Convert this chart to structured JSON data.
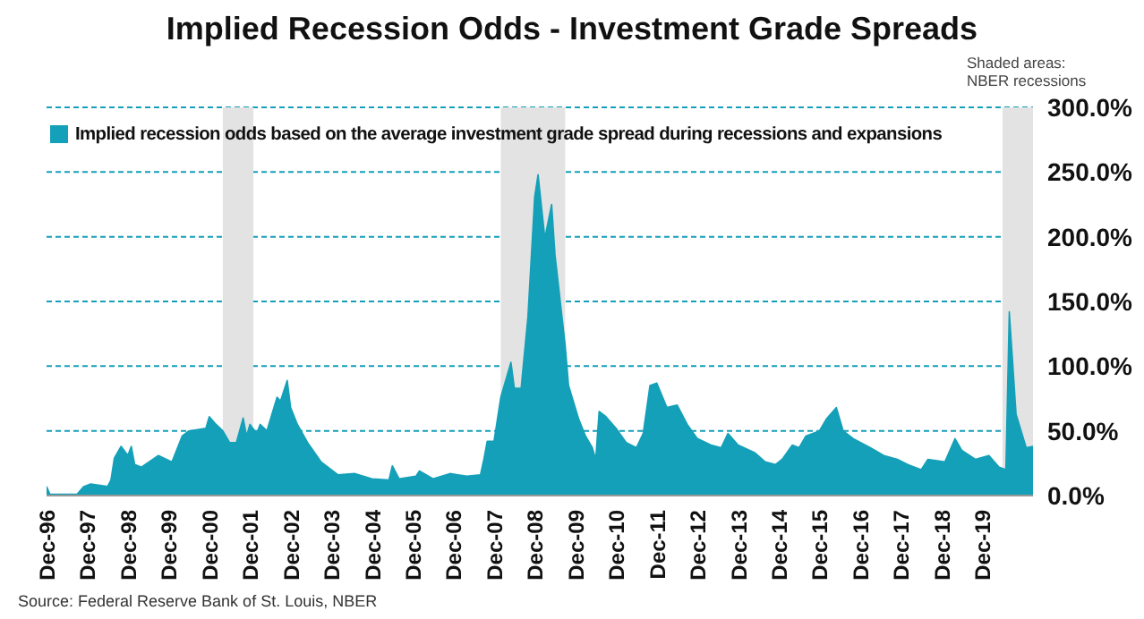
{
  "chart_data": {
    "type": "area",
    "title": "Implied Recession Odds - Investment Grade Spreads",
    "annotations": [
      "Shaded areas:\nNBER recessions",
      "Source: Federal Reserve Bank of St. Louis, NBER"
    ],
    "x": [
      "1996-12",
      "1997-01",
      "1997-09",
      "1997-11",
      "1998-01",
      "1998-06",
      "1998-07",
      "1998-08",
      "1998-10",
      "1998-12",
      "1999-01",
      "1999-02",
      "1999-04",
      "1999-09",
      "2000-01",
      "2000-04",
      "2000-06",
      "2000-11",
      "2000-12",
      "2001-02",
      "2001-04",
      "2001-06",
      "2001-08",
      "2001-10",
      "2001-11",
      "2001-12",
      "2002-02",
      "2002-03",
      "2002-05",
      "2002-08",
      "2002-09",
      "2002-11",
      "2002-12",
      "2003-02",
      "2003-05",
      "2003-09",
      "2004-02",
      "2004-07",
      "2004-12",
      "2005-05",
      "2005-06",
      "2005-08",
      "2006-01",
      "2006-02",
      "2006-06",
      "2006-11",
      "2007-04",
      "2007-08",
      "2007-09",
      "2007-10",
      "2007-12",
      "2008-02",
      "2008-05",
      "2008-06",
      "2008-08",
      "2008-10",
      "2008-12",
      "2009-01",
      "2009-03",
      "2009-05",
      "2009-06",
      "2009-09",
      "2009-10",
      "2010-01",
      "2010-03",
      "2010-05",
      "2010-06",
      "2010-07",
      "2010-09",
      "2010-12",
      "2011-03",
      "2011-06",
      "2011-08",
      "2011-10",
      "2011-12",
      "2012-03",
      "2012-06",
      "2012-09",
      "2012-12",
      "2013-04",
      "2013-07",
      "2013-09",
      "2013-12",
      "2014-05",
      "2014-08",
      "2014-11",
      "2015-01",
      "2015-04",
      "2015-06",
      "2015-08",
      "2015-12",
      "2016-02",
      "2016-05",
      "2016-07",
      "2016-10",
      "2017-03",
      "2017-07",
      "2017-11",
      "2018-02",
      "2018-06",
      "2018-08",
      "2019-01",
      "2019-04",
      "2019-06",
      "2019-10",
      "2020-02",
      "2020-05",
      "2020-07",
      "2020-08",
      "2020-09",
      "2020-10",
      "2021-01",
      "2021-03"
    ],
    "series": [
      {
        "name": "Implied recession odds based on the average investment grade spread during recessions and expansions",
        "color": "#14a0b8",
        "values": [
          7,
          1,
          1,
          7,
          9,
          7,
          12,
          29,
          38,
          31,
          38,
          24,
          22,
          31,
          26,
          46,
          50,
          52,
          61,
          55,
          50,
          41,
          41,
          60,
          46,
          55,
          48,
          55,
          50,
          76,
          73,
          89,
          68,
          55,
          41,
          26,
          16,
          17,
          13,
          12,
          23,
          13,
          15,
          19,
          13,
          17,
          15,
          16,
          28,
          42,
          42,
          76,
          103,
          83,
          83,
          138,
          231,
          248,
          199,
          225,
          186,
          116,
          85,
          59,
          46,
          37,
          28,
          65,
          61,
          52,
          41,
          37,
          48,
          85,
          87,
          68,
          70,
          55,
          44,
          39,
          37,
          48,
          39,
          33,
          26,
          24,
          28,
          39,
          37,
          46,
          50,
          59,
          68,
          50,
          44,
          37,
          31,
          28,
          24,
          20,
          28,
          26,
          44,
          35,
          28,
          31,
          22,
          20,
          142,
          103,
          63,
          37,
          38
        ]
      }
    ],
    "xlim": [
      "1996-12",
      "2021-03"
    ],
    "xticks": [
      {
        "value": "1996-12",
        "label": "Dec-96"
      },
      {
        "value": "1997-12",
        "label": "Dec-97"
      },
      {
        "value": "1998-12",
        "label": "Dec-98"
      },
      {
        "value": "1999-12",
        "label": "Dec-99"
      },
      {
        "value": "2000-12",
        "label": "Dec-00"
      },
      {
        "value": "2001-12",
        "label": "Dec-01"
      },
      {
        "value": "2002-12",
        "label": "Dec-02"
      },
      {
        "value": "2003-12",
        "label": "Dec-03"
      },
      {
        "value": "2004-12",
        "label": "Dec-04"
      },
      {
        "value": "2005-12",
        "label": "Dec-05"
      },
      {
        "value": "2006-12",
        "label": "Dec-06"
      },
      {
        "value": "2007-12",
        "label": "Dec-07"
      },
      {
        "value": "2008-12",
        "label": "Dec-08"
      },
      {
        "value": "2009-12",
        "label": "Dec-09"
      },
      {
        "value": "2010-12",
        "label": "Dec-10"
      },
      {
        "value": "2011-12",
        "label": "Dec-11"
      },
      {
        "value": "2012-12",
        "label": "Dec-12"
      },
      {
        "value": "2013-12",
        "label": "Dec-13"
      },
      {
        "value": "2014-12",
        "label": "Dec-14"
      },
      {
        "value": "2015-12",
        "label": "Dec-15"
      },
      {
        "value": "2016-12",
        "label": "Dec-16"
      },
      {
        "value": "2017-12",
        "label": "Dec-17"
      },
      {
        "value": "2018-12",
        "label": "Dec-18"
      },
      {
        "value": "2019-12",
        "label": "Dec-19"
      }
    ],
    "ylim": [
      0,
      300
    ],
    "yticks": [
      {
        "value": 0,
        "label": "0.0%"
      },
      {
        "value": 50,
        "label": "50.0%"
      },
      {
        "value": 100,
        "label": "100.0%"
      },
      {
        "value": 150,
        "label": "150.0%"
      },
      {
        "value": 200,
        "label": "200.0%"
      },
      {
        "value": 250,
        "label": "250.0%"
      },
      {
        "value": 300,
        "label": "300.0%"
      }
    ],
    "bands": [
      {
        "axis": "x",
        "from": "2001-04",
        "to": "2002-01",
        "color": "#e3e3e3"
      },
      {
        "axis": "x",
        "from": "2008-02",
        "to": "2009-09",
        "color": "#e3e3e3"
      },
      {
        "axis": "x",
        "from": "2020-06",
        "to": "2021-03",
        "color": "#e3e3e3"
      }
    ],
    "grid": "y",
    "legend": "top left"
  }
}
